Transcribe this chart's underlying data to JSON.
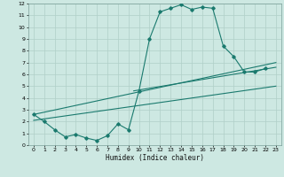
{
  "bg_color": "#cde8e2",
  "grid_color": "#b0cfc8",
  "line_color": "#1a7a6e",
  "xlabel": "Humidex (Indice chaleur)",
  "xlim": [
    -0.5,
    23.5
  ],
  "ylim": [
    0,
    12
  ],
  "xticks": [
    0,
    1,
    2,
    3,
    4,
    5,
    6,
    7,
    8,
    9,
    10,
    11,
    12,
    13,
    14,
    15,
    16,
    17,
    18,
    19,
    20,
    21,
    22,
    23
  ],
  "yticks": [
    0,
    1,
    2,
    3,
    4,
    5,
    6,
    7,
    8,
    9,
    10,
    11,
    12
  ],
  "curve1_x": [
    0,
    1,
    2,
    3,
    4,
    5,
    6,
    7,
    8,
    9,
    10,
    11,
    12,
    13,
    14,
    15,
    16,
    17,
    18,
    19,
    20,
    21,
    22
  ],
  "curve1_y": [
    2.6,
    2.0,
    1.3,
    0.7,
    0.9,
    0.6,
    0.4,
    0.8,
    1.8,
    1.3,
    4.6,
    9.0,
    11.3,
    11.6,
    11.9,
    11.5,
    11.7,
    11.6,
    8.4,
    7.5,
    6.2,
    6.2,
    6.5
  ],
  "line1_x": [
    0,
    23
  ],
  "line1_y": [
    2.6,
    7.0
  ],
  "line2_x": [
    0,
    23
  ],
  "line2_y": [
    2.1,
    5.0
  ],
  "line3_x": [
    9.5,
    23
  ],
  "line3_y": [
    4.6,
    6.6
  ]
}
